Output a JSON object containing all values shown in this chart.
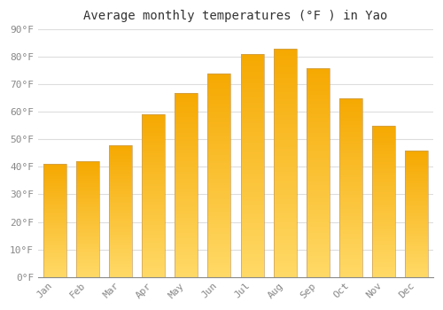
{
  "title": "Average monthly temperatures (°F ) in Yao",
  "months": [
    "Jan",
    "Feb",
    "Mar",
    "Apr",
    "May",
    "Jun",
    "Jul",
    "Aug",
    "Sep",
    "Oct",
    "Nov",
    "Dec"
  ],
  "values": [
    41,
    42,
    48,
    59,
    67,
    74,
    81,
    83,
    76,
    65,
    55,
    46
  ],
  "ylim": [
    0,
    90
  ],
  "yticks": [
    0,
    10,
    20,
    30,
    40,
    50,
    60,
    70,
    80,
    90
  ],
  "ytick_labels": [
    "0°F",
    "10°F",
    "20°F",
    "30°F",
    "40°F",
    "50°F",
    "60°F",
    "70°F",
    "80°F",
    "90°F"
  ],
  "bar_color_top": "#F5A800",
  "bar_color_bottom": "#FFD966",
  "bar_edge_color": "#C8A060",
  "background_color": "#FFFFFF",
  "plot_bg_color": "#FFFFFF",
  "grid_color": "#DDDDDD",
  "title_fontsize": 10,
  "tick_fontsize": 8,
  "bar_width": 0.7
}
